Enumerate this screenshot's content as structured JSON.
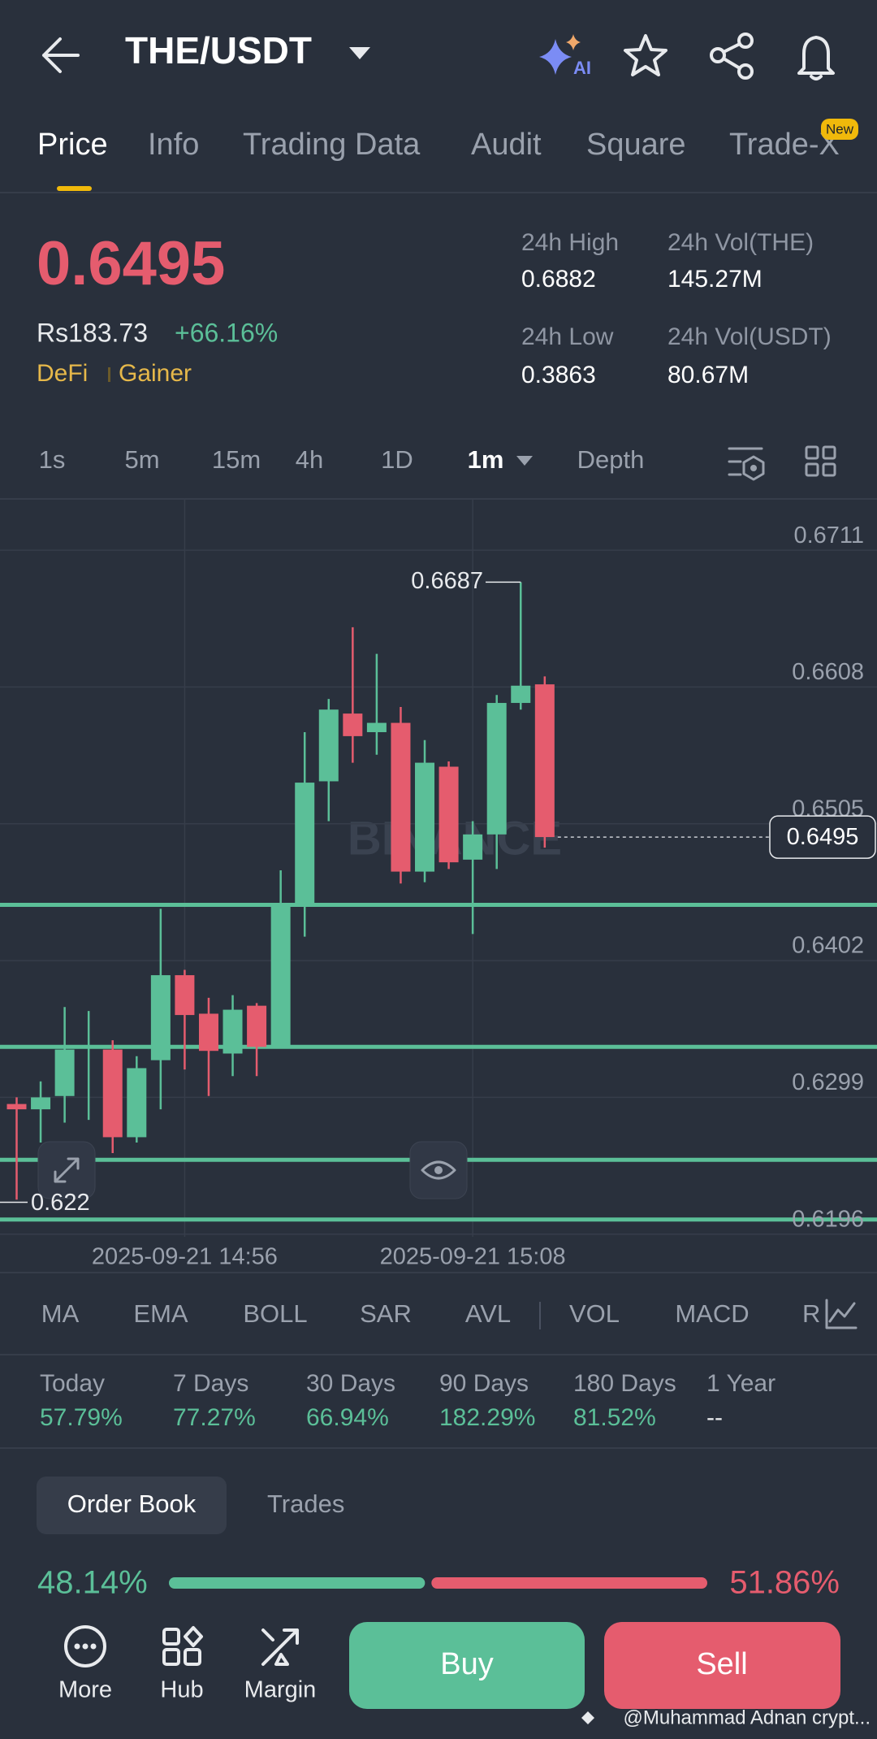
{
  "header": {
    "title": "THE/USDT",
    "ai_badge": "AI"
  },
  "tabs": [
    "Price",
    "Info",
    "Trading Data",
    "Audit",
    "Square",
    "Trade-X"
  ],
  "tab_badge": "New",
  "price": {
    "last": "0.6495",
    "fiat": "Rs183.73",
    "change": "+66.16%",
    "tags": [
      "DeFi",
      "Gainer"
    ]
  },
  "stats": [
    {
      "label": "24h High",
      "value": "0.6882"
    },
    {
      "label": "24h Vol(THE)",
      "value": "145.27M"
    },
    {
      "label": "24h Low",
      "value": "0.3863"
    },
    {
      "label": "24h Vol(USDT)",
      "value": "80.67M"
    }
  ],
  "intervals": [
    "1s",
    "5m",
    "15m",
    "4h",
    "1D",
    "1m",
    "Depth"
  ],
  "chart_data": {
    "type": "candlestick",
    "watermark": "BINANCE",
    "up_color": "#5bbf98",
    "down_color": "#e55c6e",
    "ylim": [
      0.6194,
      0.6749
    ],
    "yticks": [
      0.6711,
      0.6608,
      0.6505,
      0.6402,
      0.6299,
      0.6196
    ],
    "grid": true,
    "categories": [
      null,
      null,
      null,
      null,
      null,
      null,
      null,
      "2025-09-21 14:56",
      null,
      null,
      null,
      null,
      null,
      null,
      null,
      null,
      null,
      null,
      null,
      "2025-09-21 15:08",
      null,
      null,
      null
    ],
    "candles": [
      {
        "open": 0.6294,
        "close": 0.629,
        "high": 0.6299,
        "low": 0.6222
      },
      {
        "open": 0.629,
        "close": 0.6299,
        "high": 0.6311,
        "low": 0.6265
      },
      {
        "open": 0.63,
        "close": 0.6335,
        "high": 0.6367,
        "low": 0.628
      },
      {
        "open": 0.6336,
        "close": 0.6338,
        "high": 0.6364,
        "low": 0.6282
      },
      {
        "open": 0.6335,
        "close": 0.6269,
        "high": 0.6342,
        "low": 0.6257
      },
      {
        "open": 0.6269,
        "close": 0.6321,
        "high": 0.633,
        "low": 0.6265
      },
      {
        "open": 0.6327,
        "close": 0.6391,
        "high": 0.6441,
        "low": 0.629
      },
      {
        "open": 0.6391,
        "close": 0.6361,
        "high": 0.6395,
        "low": 0.632
      },
      {
        "open": 0.6362,
        "close": 0.6334,
        "high": 0.6374,
        "low": 0.63
      },
      {
        "open": 0.6332,
        "close": 0.6365,
        "high": 0.6376,
        "low": 0.6315
      },
      {
        "open": 0.6368,
        "close": 0.6337,
        "high": 0.637,
        "low": 0.6315
      },
      {
        "open": 0.6337,
        "close": 0.6444,
        "high": 0.647,
        "low": 0.6336
      },
      {
        "open": 0.6444,
        "close": 0.6536,
        "high": 0.6574,
        "low": 0.642
      },
      {
        "open": 0.6537,
        "close": 0.6591,
        "high": 0.6599,
        "low": 0.6507
      },
      {
        "open": 0.6588,
        "close": 0.6571,
        "high": 0.6653,
        "low": 0.6551
      },
      {
        "open": 0.6574,
        "close": 0.6581,
        "high": 0.6633,
        "low": 0.6557
      },
      {
        "open": 0.6581,
        "close": 0.6469,
        "high": 0.6593,
        "low": 0.646
      },
      {
        "open": 0.6469,
        "close": 0.6551,
        "high": 0.6568,
        "low": 0.6461
      },
      {
        "open": 0.6548,
        "close": 0.6476,
        "high": 0.6552,
        "low": 0.6471
      },
      {
        "open": 0.6478,
        "close": 0.6497,
        "high": 0.6507,
        "low": 0.6422
      },
      {
        "open": 0.6497,
        "close": 0.6596,
        "high": 0.6602,
        "low": 0.6471
      },
      {
        "open": 0.6596,
        "close": 0.6609,
        "high": 0.6687,
        "low": 0.6591
      },
      {
        "open": 0.661,
        "close": 0.6495,
        "high": 0.6616,
        "low": 0.6487
      }
    ],
    "high_label": 0.6687,
    "low_label": 0.622,
    "last_price": 0.6495,
    "levels": [
      0.6444,
      0.6337,
      0.6252,
      0.6207
    ],
    "level_color": "#5bbf98"
  },
  "indicators": [
    "MA",
    "EMA",
    "BOLL",
    "SAR",
    "AVL",
    "VOL",
    "MACD",
    "R"
  ],
  "performance": [
    {
      "label": "Today",
      "value": "57.79%",
      "color": "#5bbf98"
    },
    {
      "label": "7 Days",
      "value": "77.27%",
      "color": "#5bbf98"
    },
    {
      "label": "30 Days",
      "value": "66.94%",
      "color": "#5bbf98"
    },
    {
      "label": "90 Days",
      "value": "182.29%",
      "color": "#5bbf98"
    },
    {
      "label": "180 Days",
      "value": "81.52%",
      "color": "#5bbf98"
    },
    {
      "label": "1 Year",
      "value": "--",
      "color": "#e8eaed"
    }
  ],
  "order_tabs": [
    "Order Book",
    "Trades"
  ],
  "ratio": {
    "buy": {
      "value": 48.14,
      "label": "48.14%"
    },
    "sell": {
      "value": 51.86,
      "label": "51.86%"
    }
  },
  "nav": [
    "More",
    "Hub",
    "Margin"
  ],
  "buttons": {
    "buy": "Buy",
    "sell": "Sell"
  },
  "watermark": "@Muhammad Adnan crypt..."
}
